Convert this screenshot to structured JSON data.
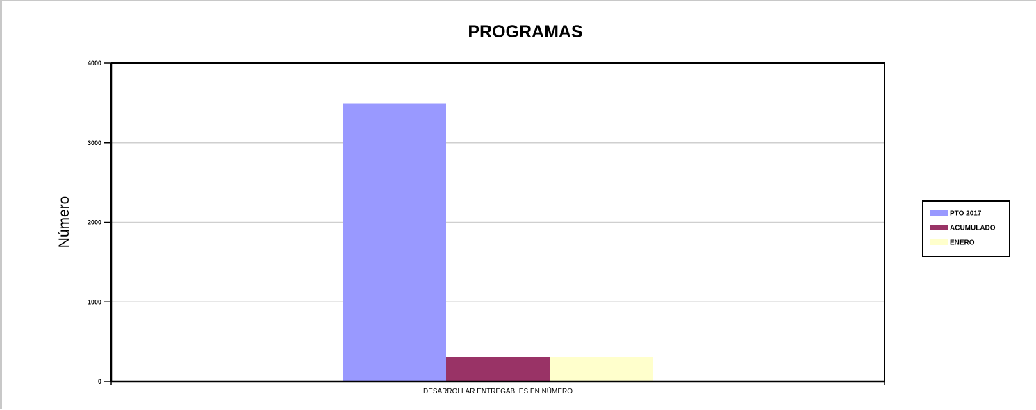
{
  "chart_data": {
    "type": "bar",
    "title": "PROGRAMAS",
    "xlabel": "",
    "ylabel": "Número",
    "categories": [
      "DESARROLLAR ENTREGABLES EN NÚMERO"
    ],
    "series": [
      {
        "name": "PTO 2017",
        "values": [
          3490
        ],
        "color": "#9999ff"
      },
      {
        "name": "ACUMULADO",
        "values": [
          310
        ],
        "color": "#993366"
      },
      {
        "name": "ENERO",
        "values": [
          310
        ],
        "color": "#ffffcc"
      }
    ],
    "ylim": [
      0,
      4000
    ],
    "yticks": [
      0,
      1000,
      2000,
      3000,
      4000
    ],
    "grid": true,
    "legend_position": "right"
  }
}
